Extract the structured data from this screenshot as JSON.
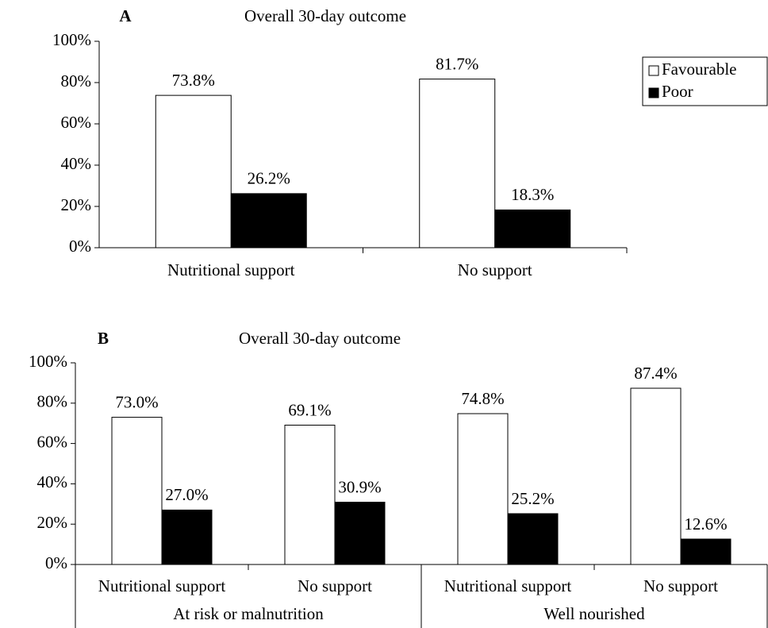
{
  "chart_data": [
    {
      "type": "bar",
      "panel": "A",
      "title": "Overall 30-day outcome",
      "categories": [
        "Nutritional support",
        "No support"
      ],
      "series": [
        {
          "name": "Favourable",
          "color": "#ffffff",
          "values": [
            73.8,
            81.7
          ],
          "value_labels": [
            "73.8%",
            "81.7%"
          ]
        },
        {
          "name": "Poor",
          "color": "#000000",
          "values": [
            26.2,
            18.3
          ],
          "value_labels": [
            "26.2%",
            "18.3%"
          ]
        }
      ],
      "ylim": [
        0,
        100
      ],
      "yticks": [
        {
          "value": 0,
          "label": "0%"
        },
        {
          "value": 20,
          "label": "20%"
        },
        {
          "value": 40,
          "label": "40%"
        },
        {
          "value": 60,
          "label": "60%"
        },
        {
          "value": 80,
          "label": "80%"
        },
        {
          "value": 100,
          "label": "100%"
        }
      ],
      "legend": "right",
      "grid": false
    },
    {
      "type": "bar",
      "panel": "B",
      "title": "Overall 30-day outcome",
      "categories": [
        "Nutritional support",
        "No support",
        "Nutritional support",
        "No support"
      ],
      "groups": [
        "At risk or malnutrition",
        "Well nourished"
      ],
      "series": [
        {
          "name": "Favourable",
          "color": "#ffffff",
          "values": [
            73.0,
            69.1,
            74.8,
            87.4
          ],
          "value_labels": [
            "73.0%",
            "69.1%",
            "74.8%",
            "87.4%"
          ]
        },
        {
          "name": "Poor",
          "color": "#000000",
          "values": [
            27.0,
            30.9,
            25.2,
            12.6
          ],
          "value_labels": [
            "27.0%",
            "30.9%",
            "25.2%",
            "12.6%"
          ]
        }
      ],
      "ylim": [
        0,
        100
      ],
      "yticks": [
        {
          "value": 0,
          "label": "0%"
        },
        {
          "value": 20,
          "label": "20%"
        },
        {
          "value": 40,
          "label": "40%"
        },
        {
          "value": 60,
          "label": "60%"
        },
        {
          "value": 80,
          "label": "80%"
        },
        {
          "value": 100,
          "label": "100%"
        }
      ],
      "grid": false
    }
  ]
}
